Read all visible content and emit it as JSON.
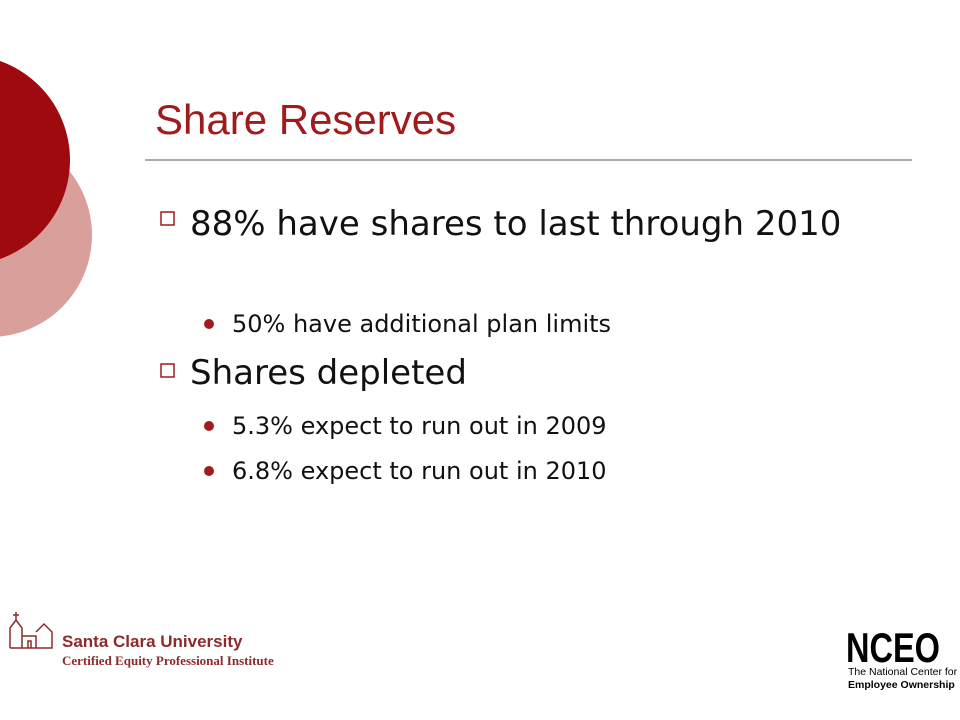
{
  "header": {
    "title": "Share Reserves"
  },
  "bullets": [
    {
      "text": "88% have shares to last through 2010",
      "children": [
        "50% have additional plan limits"
      ]
    },
    {
      "text": "Shares depleted",
      "children": [
        "5.3% expect to run out in 2009",
        "6.8% expect to run out in 2010"
      ]
    }
  ],
  "footer": {
    "left_logo": {
      "name": "Santa Clara University",
      "subtitle": "Certified Equity Professional Institute"
    },
    "right_logo": {
      "name": "NCEO",
      "line1": "The National Center for",
      "line2": "Employee Ownership"
    }
  }
}
